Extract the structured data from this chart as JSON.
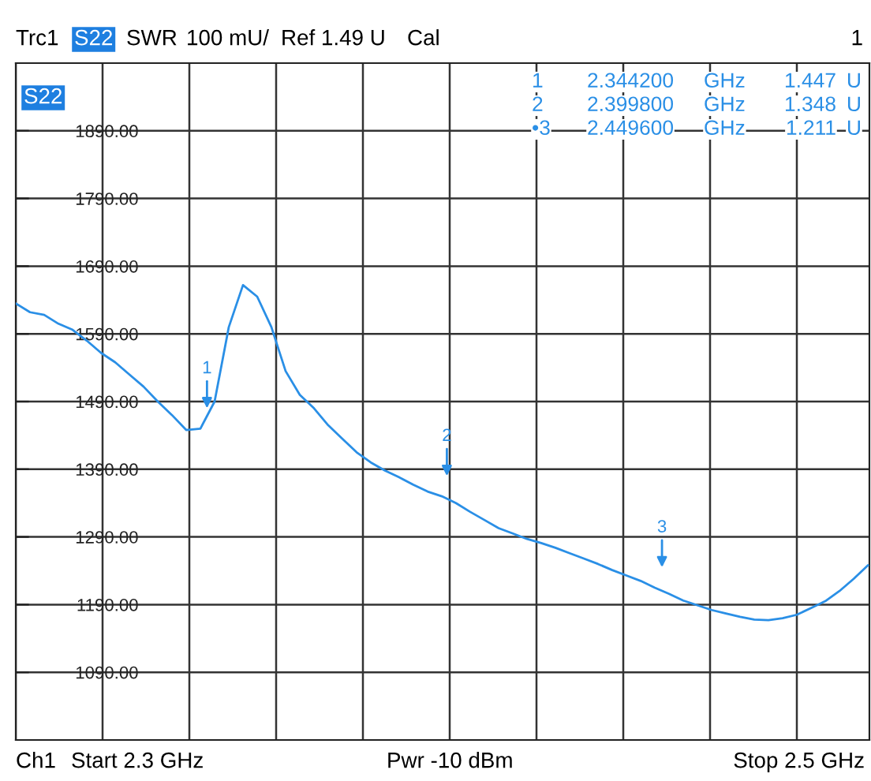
{
  "chart_data": {
    "type": "line",
    "title": "Trc1",
    "categories": [
      null,
      null,
      null,
      null,
      null,
      null,
      null,
      null,
      null,
      null,
      null,
      null,
      null,
      null,
      null,
      null,
      null,
      null,
      null,
      null,
      null,
      null,
      null,
      null,
      null,
      null,
      null,
      null,
      null,
      null,
      null,
      null,
      null,
      null,
      null,
      null,
      null,
      null,
      null,
      null,
      null,
      null,
      null,
      null,
      null,
      null,
      null,
      null,
      null,
      null,
      null,
      null,
      null,
      null,
      null,
      null,
      null,
      null,
      null,
      null,
      null
    ],
    "series": [
      {
        "color": "#2a8fe6",
        "values": [
          1635,
          1622,
          1618,
          1605,
          1596,
          1580,
          1562,
          1548,
          1530,
          1512,
          1490,
          1470,
          1448,
          1450,
          1490,
          1600,
          1662,
          1645,
          1600,
          1535,
          1500,
          1480,
          1455,
          1435,
          1415,
          1400,
          1388,
          1378,
          1367,
          1357,
          1350,
          1340,
          1327,
          1315,
          1303,
          1295,
          1287,
          1281,
          1274,
          1266,
          1258,
          1250,
          1241,
          1233,
          1225,
          1215,
          1206,
          1196,
          1189,
          1182,
          1177,
          1172,
          1168,
          1167,
          1170,
          1175,
          1185,
          1195,
          1210,
          1228,
          1248
        ]
      }
    ],
    "ylim": [
      990,
      1990
    ],
    "yticks": [
      {
        "value": 1090,
        "label": "1090.00"
      },
      {
        "value": 1190,
        "label": "1190.00"
      },
      {
        "value": 1290,
        "label": "1290.00"
      },
      {
        "value": 1390,
        "label": "1390.00"
      },
      {
        "value": 1490,
        "label": "1490.00"
      },
      {
        "value": 1590,
        "label": "1590.00"
      },
      {
        "value": 1690,
        "label": "1690.00"
      },
      {
        "value": 1790,
        "label": "1790.00"
      },
      {
        "value": 1890,
        "label": "1890.00"
      }
    ],
    "grid": true,
    "annotations": [
      "S22",
      "SWR",
      "100 mU/",
      "Ref 1.49 U",
      "Cal",
      "1",
      "S22",
      "1 2.344200 GHz 1.447 U",
      "2 2.399800 GHz 1.348 U",
      "•3 2.449600 GHz 1.211 U",
      "Ch1",
      "Start 2.3 GHz",
      "Pwr -10 dBm",
      "Stop 2.5 GHz",
      "1",
      "2",
      "3"
    ]
  }
}
